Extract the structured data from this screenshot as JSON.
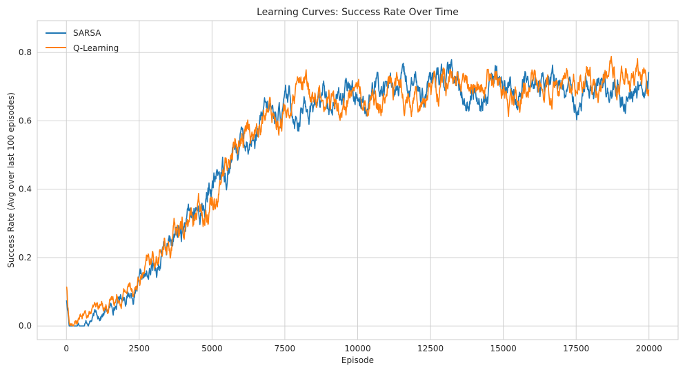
{
  "chart_data": {
    "type": "line",
    "title": "Learning Curves: Success Rate Over Time",
    "xlabel": "Episode",
    "ylabel": "Success Rate (Avg over last 100 episodes)",
    "xlim": [
      -1000,
      21000
    ],
    "ylim": [
      -0.04,
      0.893
    ],
    "xticks": [
      0,
      2500,
      5000,
      7500,
      10000,
      12500,
      15000,
      17500,
      20000
    ],
    "xtick_labels": [
      "0",
      "2500",
      "5000",
      "7500",
      "10000",
      "12500",
      "15000",
      "17500",
      "20000"
    ],
    "yticks": [
      0.0,
      0.2,
      0.4,
      0.6,
      0.8
    ],
    "ytick_labels": [
      "0.0",
      "0.2",
      "0.4",
      "0.6",
      "0.8"
    ],
    "grid": true,
    "legend_position": "top-left",
    "series": [
      {
        "name": "SARSA",
        "color": "#1f77b4",
        "x": [
          0,
          100,
          200,
          500,
          1000,
          1500,
          2000,
          2400,
          2800,
          3200,
          3600,
          4000,
          4400,
          4800,
          5200,
          5600,
          6000,
          6400,
          6800,
          7200,
          7600,
          8000,
          8400,
          8800,
          9200,
          9600,
          10000,
          10400,
          10800,
          11200,
          11600,
          12000,
          12400,
          12800,
          13200,
          13600,
          14000,
          14400,
          14800,
          15200,
          15600,
          16000,
          16400,
          16800,
          17200,
          17600,
          18000,
          18400,
          18800,
          19200,
          19600,
          20000
        ],
        "y": [
          0.08,
          0.0,
          0.0,
          0.01,
          0.03,
          0.05,
          0.1,
          0.1,
          0.13,
          0.19,
          0.24,
          0.27,
          0.31,
          0.36,
          0.43,
          0.49,
          0.55,
          0.57,
          0.59,
          0.61,
          0.63,
          0.64,
          0.66,
          0.66,
          0.67,
          0.68,
          0.68,
          0.69,
          0.69,
          0.7,
          0.67,
          0.69,
          0.7,
          0.7,
          0.71,
          0.69,
          0.69,
          0.7,
          0.7,
          0.69,
          0.69,
          0.71,
          0.7,
          0.7,
          0.69,
          0.69,
          0.71,
          0.71,
          0.69,
          0.69,
          0.69,
          0.7
        ]
      },
      {
        "name": "Q-Learning",
        "color": "#ff7f0e",
        "x": [
          0,
          100,
          200,
          500,
          1000,
          1500,
          2000,
          2400,
          2800,
          3200,
          3600,
          4000,
          4400,
          4800,
          5200,
          5600,
          6000,
          6400,
          6800,
          7200,
          7600,
          8000,
          8400,
          8800,
          9200,
          9600,
          10000,
          10400,
          10800,
          11200,
          11600,
          12000,
          12400,
          12800,
          13200,
          13600,
          14000,
          14400,
          14800,
          15200,
          15600,
          16000,
          16400,
          16800,
          17200,
          17600,
          18000,
          18400,
          18800,
          19200,
          19600,
          20000
        ],
        "y": [
          0.12,
          0.01,
          0.0,
          0.02,
          0.04,
          0.07,
          0.11,
          0.13,
          0.16,
          0.21,
          0.25,
          0.28,
          0.32,
          0.37,
          0.44,
          0.49,
          0.56,
          0.58,
          0.6,
          0.62,
          0.64,
          0.66,
          0.67,
          0.68,
          0.67,
          0.68,
          0.69,
          0.69,
          0.69,
          0.69,
          0.69,
          0.7,
          0.7,
          0.71,
          0.7,
          0.7,
          0.7,
          0.7,
          0.71,
          0.7,
          0.7,
          0.72,
          0.7,
          0.7,
          0.7,
          0.71,
          0.71,
          0.7,
          0.7,
          0.7,
          0.71,
          0.71
        ]
      }
    ]
  }
}
